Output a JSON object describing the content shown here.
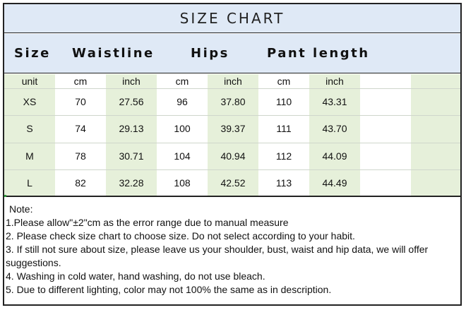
{
  "title": "SIZE CHART",
  "headers": {
    "size": "Size",
    "waistline": "Waistline",
    "hips": "Hips",
    "pant_length": "Pant length"
  },
  "units": [
    "unit",
    "cm",
    "inch",
    "cm",
    "inch",
    "cm",
    "inch",
    "",
    ""
  ],
  "rows": [
    [
      "XS",
      "70",
      "27.56",
      "96",
      "37.80",
      "110",
      "43.31",
      "",
      ""
    ],
    [
      "S",
      "74",
      "29.13",
      "100",
      "39.37",
      "111",
      "43.70",
      "",
      ""
    ],
    [
      "M",
      "78",
      "30.71",
      "104",
      "40.94",
      "112",
      "44.09",
      "",
      ""
    ],
    [
      "L",
      "82",
      "32.28",
      "108",
      "42.52",
      "113",
      "44.49",
      "",
      ""
    ]
  ],
  "notes": {
    "heading": "Note:",
    "lines": [
      "1.Please allow\"±2\"cm as the error range due to manual measure",
      "2. Please check size chart to choose size. Do not select according to your habit.",
      "3. If still not sure about size, please leave us your shoulder, bust, waist and hip data, we will offer suggestions.",
      "4. Washing in cold water, hand washing, do not use bleach.",
      "5. Due to different lighting, color may not 100% the same as in description."
    ]
  },
  "colors": {
    "header_blue": "#dfe9f6",
    "column_green": "#e6f0da",
    "border": "#222222"
  }
}
